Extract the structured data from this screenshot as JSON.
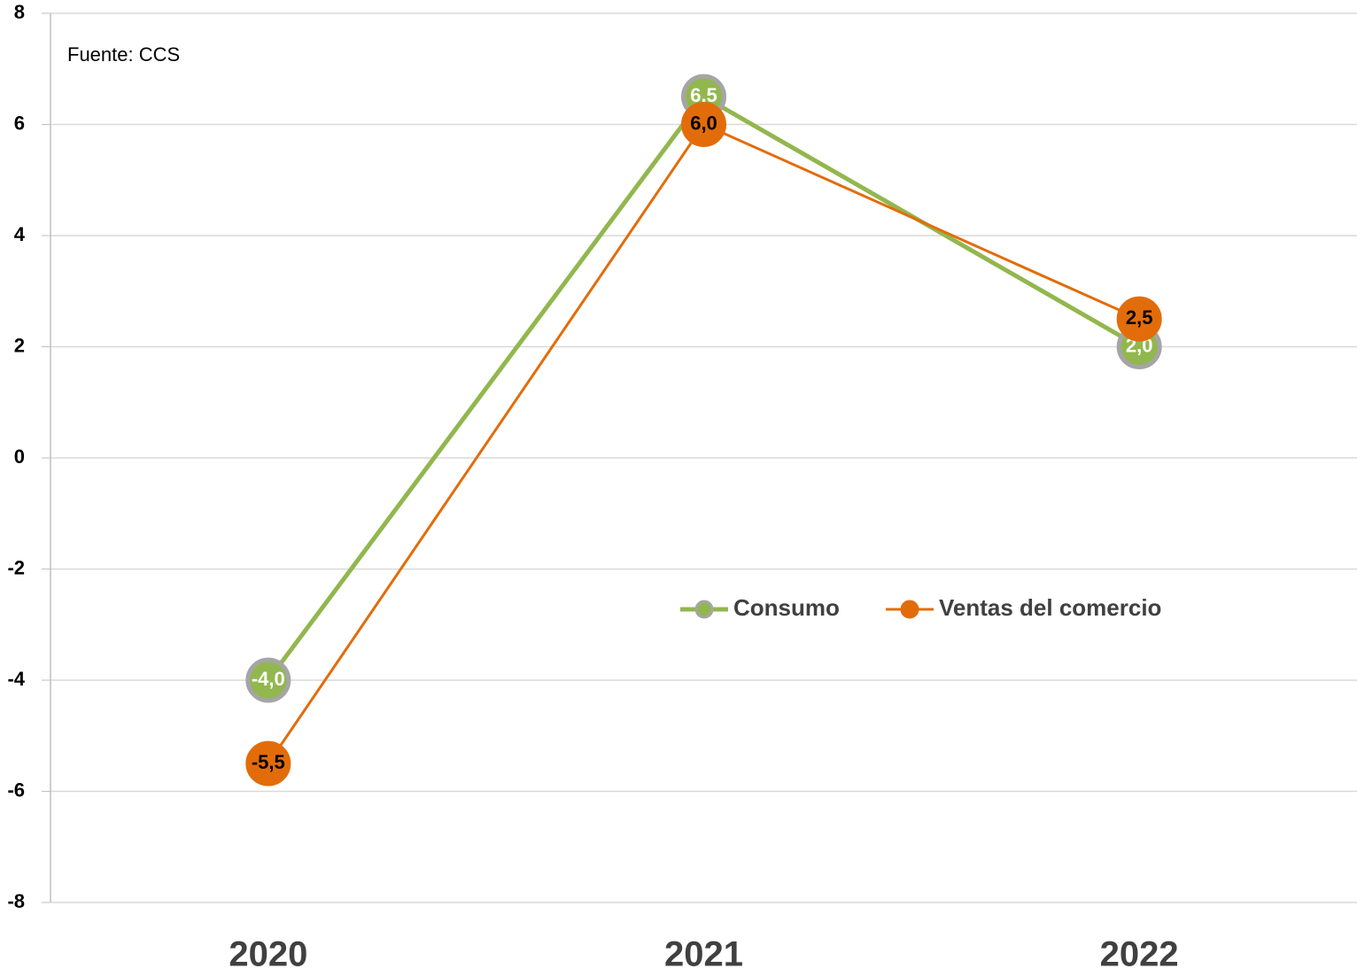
{
  "chart_data": {
    "type": "line",
    "annotation": "Fuente: CCS",
    "categories": [
      "2020",
      "2021",
      "2022"
    ],
    "series": [
      {
        "name": "Consumo",
        "color": "#92b74e",
        "marker_edge": "#a5a5a5",
        "label_color": "#ffffff",
        "line_width": 5,
        "values": [
          -4.0,
          6.5,
          2.0
        ],
        "value_labels": [
          "-4,0",
          "6,5",
          "2,0"
        ]
      },
      {
        "name": "Ventas del comercio",
        "color": "#e36c0a",
        "marker_edge": "#e36c0a",
        "label_color": "#000000",
        "line_width": 3,
        "values": [
          -5.5,
          6.0,
          2.5
        ],
        "value_labels": [
          "-5,5",
          "6,0",
          "2,5"
        ]
      }
    ],
    "ylim": [
      -8,
      8
    ],
    "yticks": [
      -8,
      -6,
      -4,
      -2,
      0,
      2,
      4,
      6,
      8
    ],
    "grid": true
  }
}
